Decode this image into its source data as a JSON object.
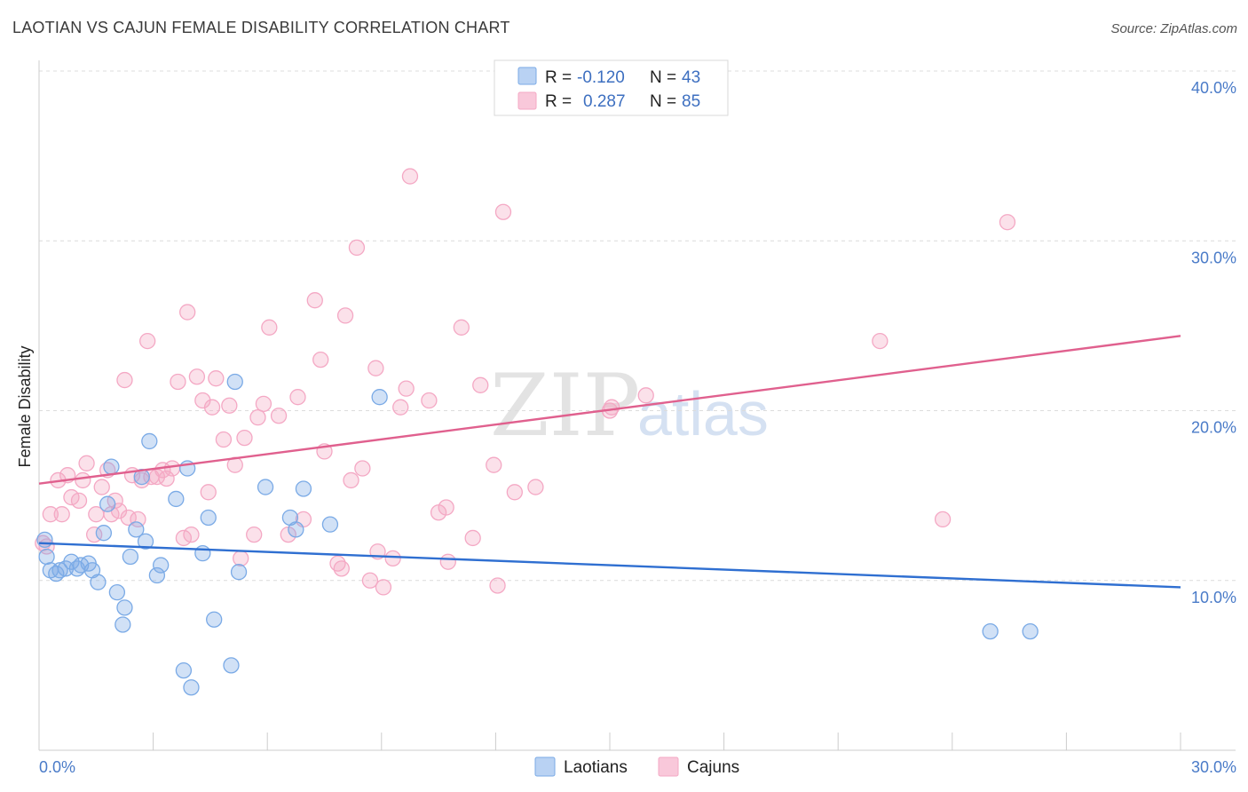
{
  "title": "LAOTIAN VS CAJUN FEMALE DISABILITY CORRELATION CHART",
  "source": "Source: ZipAtlas.com",
  "watermark": {
    "zip": "ZIP",
    "atlas": "atlas"
  },
  "chart_data": {
    "type": "scatter",
    "xlabel": "",
    "ylabel": "Female Disability",
    "xlim": [
      0,
      30
    ],
    "ylim": [
      0,
      40
    ],
    "x_tick_labels": [
      "0.0%",
      "30.0%"
    ],
    "y_ticks": [
      10,
      20,
      30,
      40
    ],
    "y_tick_labels": [
      "10.0%",
      "20.0%",
      "30.0%",
      "40.0%"
    ],
    "grid": true,
    "legend_position": "top-center",
    "series": [
      {
        "name": "Laotians",
        "color": "#7aaae6",
        "line_color": "#2f6fd1",
        "r_label": "R =",
        "r_value": "-0.120",
        "n_label": "N =",
        "n_value": "43",
        "trend": {
          "x": [
            0,
            30
          ],
          "y": [
            12.2,
            9.6
          ]
        },
        "points": [
          [
            0.15,
            12.4
          ],
          [
            0.2,
            11.4
          ],
          [
            0.3,
            10.6
          ],
          [
            0.45,
            10.4
          ],
          [
            0.55,
            10.6
          ],
          [
            0.7,
            10.7
          ],
          [
            0.85,
            11.1
          ],
          [
            1.0,
            10.7
          ],
          [
            1.1,
            10.9
          ],
          [
            1.3,
            11.0
          ],
          [
            1.4,
            10.6
          ],
          [
            1.55,
            9.9
          ],
          [
            1.7,
            12.8
          ],
          [
            1.8,
            14.5
          ],
          [
            1.9,
            16.7
          ],
          [
            2.05,
            9.3
          ],
          [
            2.25,
            8.4
          ],
          [
            2.2,
            7.4
          ],
          [
            2.4,
            11.4
          ],
          [
            2.55,
            13.0
          ],
          [
            2.7,
            16.1
          ],
          [
            2.8,
            12.3
          ],
          [
            2.9,
            18.2
          ],
          [
            3.1,
            10.3
          ],
          [
            3.2,
            10.9
          ],
          [
            3.6,
            14.8
          ],
          [
            3.8,
            4.7
          ],
          [
            3.9,
            16.6
          ],
          [
            4.0,
            3.7
          ],
          [
            4.3,
            11.6
          ],
          [
            4.45,
            13.7
          ],
          [
            4.6,
            7.7
          ],
          [
            5.05,
            5.0
          ],
          [
            5.15,
            21.7
          ],
          [
            5.25,
            10.5
          ],
          [
            5.95,
            15.5
          ],
          [
            6.6,
            13.7
          ],
          [
            6.75,
            13.0
          ],
          [
            6.95,
            15.4
          ],
          [
            7.65,
            13.3
          ],
          [
            8.95,
            20.8
          ],
          [
            25.0,
            7.0
          ],
          [
            26.05,
            7.0
          ]
        ]
      },
      {
        "name": "Cajuns",
        "color": "#f4a8c4",
        "line_color": "#e0608e",
        "r_label": "R =",
        "r_value": "0.287",
        "n_label": "N =",
        "n_value": "85",
        "trend": {
          "x": [
            0,
            30
          ],
          "y": [
            15.7,
            24.4
          ]
        },
        "points": [
          [
            0.1,
            12.2
          ],
          [
            0.2,
            12.0
          ],
          [
            0.3,
            13.9
          ],
          [
            0.5,
            15.9
          ],
          [
            0.6,
            13.9
          ],
          [
            0.75,
            16.2
          ],
          [
            0.85,
            14.9
          ],
          [
            1.05,
            14.7
          ],
          [
            1.15,
            15.9
          ],
          [
            1.25,
            16.9
          ],
          [
            1.45,
            12.7
          ],
          [
            1.5,
            13.9
          ],
          [
            1.65,
            15.5
          ],
          [
            1.8,
            16.5
          ],
          [
            1.9,
            13.9
          ],
          [
            2.0,
            14.7
          ],
          [
            2.1,
            14.1
          ],
          [
            2.25,
            21.8
          ],
          [
            2.35,
            13.7
          ],
          [
            2.45,
            16.2
          ],
          [
            2.6,
            13.6
          ],
          [
            2.7,
            15.9
          ],
          [
            2.85,
            24.1
          ],
          [
            2.95,
            16.1
          ],
          [
            3.1,
            16.1
          ],
          [
            3.25,
            16.5
          ],
          [
            3.35,
            16.0
          ],
          [
            3.5,
            16.6
          ],
          [
            3.65,
            21.7
          ],
          [
            3.8,
            12.5
          ],
          [
            3.9,
            25.8
          ],
          [
            4.0,
            12.7
          ],
          [
            4.15,
            22.0
          ],
          [
            4.3,
            20.6
          ],
          [
            4.45,
            15.2
          ],
          [
            4.55,
            20.2
          ],
          [
            4.65,
            21.9
          ],
          [
            4.85,
            18.3
          ],
          [
            5.0,
            20.3
          ],
          [
            5.15,
            16.8
          ],
          [
            5.3,
            11.3
          ],
          [
            5.4,
            18.4
          ],
          [
            5.65,
            12.7
          ],
          [
            5.75,
            19.6
          ],
          [
            5.9,
            20.4
          ],
          [
            6.05,
            24.9
          ],
          [
            6.3,
            19.7
          ],
          [
            6.55,
            12.7
          ],
          [
            6.8,
            20.8
          ],
          [
            6.95,
            13.6
          ],
          [
            7.25,
            26.5
          ],
          [
            7.4,
            23.0
          ],
          [
            7.5,
            17.6
          ],
          [
            7.85,
            11.0
          ],
          [
            7.95,
            10.7
          ],
          [
            8.05,
            25.6
          ],
          [
            8.2,
            15.9
          ],
          [
            8.35,
            29.6
          ],
          [
            8.5,
            16.6
          ],
          [
            8.7,
            10.0
          ],
          [
            8.85,
            22.5
          ],
          [
            8.9,
            11.7
          ],
          [
            9.05,
            9.6
          ],
          [
            9.3,
            11.3
          ],
          [
            9.5,
            20.2
          ],
          [
            9.65,
            21.3
          ],
          [
            9.75,
            33.8
          ],
          [
            10.25,
            20.6
          ],
          [
            10.5,
            14.0
          ],
          [
            10.7,
            14.3
          ],
          [
            10.75,
            11.1
          ],
          [
            11.1,
            24.9
          ],
          [
            11.4,
            12.5
          ],
          [
            11.6,
            21.5
          ],
          [
            11.95,
            16.8
          ],
          [
            12.05,
            9.7
          ],
          [
            12.2,
            31.7
          ],
          [
            12.5,
            15.2
          ],
          [
            13.05,
            15.5
          ],
          [
            15.0,
            20.0
          ],
          [
            15.05,
            20.2
          ],
          [
            15.95,
            20.9
          ],
          [
            22.1,
            24.1
          ],
          [
            23.75,
            13.6
          ],
          [
            25.45,
            31.1
          ]
        ]
      }
    ]
  }
}
